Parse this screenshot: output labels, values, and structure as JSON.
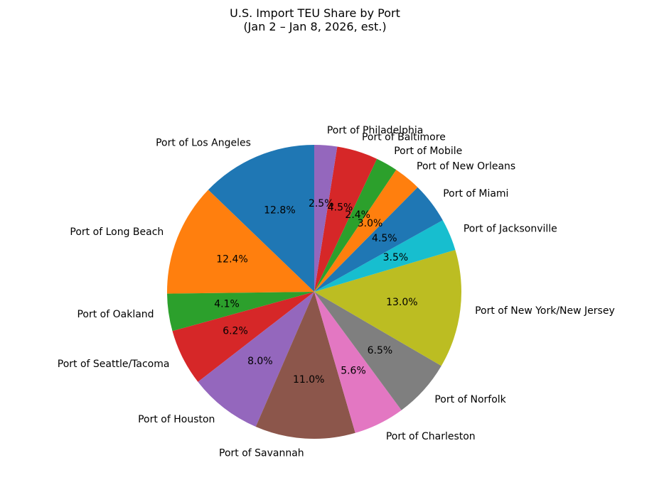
{
  "chart_data": {
    "type": "pie",
    "title": "U.S. Import TEU Share by Port",
    "subtitle": "(Jan 2 – Jan 8, 2026, est.)",
    "start_angle_deg": 90,
    "direction": "counterclockwise",
    "slices": [
      {
        "label": "Port of Los Angeles",
        "value": 12.8,
        "pct_label": "12.8%",
        "color": "#1f77b4"
      },
      {
        "label": "Port of Long Beach",
        "value": 12.4,
        "pct_label": "12.4%",
        "color": "#ff7f0e"
      },
      {
        "label": "Port of Oakland",
        "value": 4.1,
        "pct_label": "4.1%",
        "color": "#2ca02c"
      },
      {
        "label": "Port of Seattle/Tacoma",
        "value": 6.2,
        "pct_label": "6.2%",
        "color": "#d62728"
      },
      {
        "label": "Port of Houston",
        "value": 8.0,
        "pct_label": "8.0%",
        "color": "#9467bd"
      },
      {
        "label": "Port of Savannah",
        "value": 11.0,
        "pct_label": "11.0%",
        "color": "#8c564b"
      },
      {
        "label": "Port of Charleston",
        "value": 5.6,
        "pct_label": "5.6%",
        "color": "#e377c2"
      },
      {
        "label": "Port of Norfolk",
        "value": 6.5,
        "pct_label": "6.5%",
        "color": "#7f7f7f"
      },
      {
        "label": "Port of New York/New Jersey",
        "value": 13.0,
        "pct_label": "13.0%",
        "color": "#bcbd22"
      },
      {
        "label": "Port of Jacksonville",
        "value": 3.5,
        "pct_label": "3.5%",
        "color": "#17becf"
      },
      {
        "label": "Port of Miami",
        "value": 4.5,
        "pct_label": "4.5%",
        "color": "#1f77b4"
      },
      {
        "label": "Port of New Orleans",
        "value": 3.0,
        "pct_label": "3.0%",
        "color": "#ff7f0e"
      },
      {
        "label": "Port of Mobile",
        "value": 2.4,
        "pct_label": "2.4%",
        "color": "#2ca02c"
      },
      {
        "label": "Port of Baltimore",
        "value": 4.5,
        "pct_label": "4.5%",
        "color": "#d62728"
      },
      {
        "label": "Port of Philadelphia",
        "value": 2.5,
        "pct_label": "2.5%",
        "color": "#9467bd"
      }
    ]
  }
}
